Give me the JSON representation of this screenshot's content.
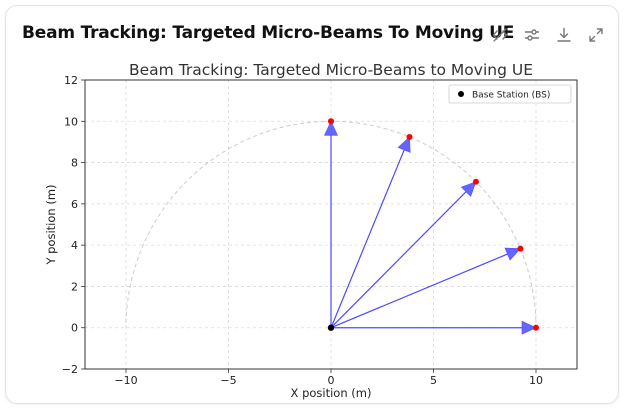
{
  "header": {
    "title": "Beam Tracking: Targeted Micro-Beams To Moving UE"
  },
  "toolbar": {
    "icons": [
      "hide-code-icon",
      "settings-sliders-icon",
      "download-icon",
      "expand-icon"
    ]
  },
  "chart_data": {
    "type": "scatter",
    "title": "Beam Tracking: Targeted Micro-Beams to Moving UE",
    "xlabel": "X position (m)",
    "ylabel": "Y position (m)",
    "xlim": [
      -12,
      12
    ],
    "ylim": [
      -2,
      12
    ],
    "xticks": [
      -10,
      -5,
      0,
      5,
      10
    ],
    "yticks": [
      -2,
      0,
      2,
      4,
      6,
      8,
      10,
      12
    ],
    "grid": true,
    "legend": {
      "placement": "top-right",
      "entries": [
        "Base Station (BS)"
      ]
    },
    "base_station": {
      "x": 0,
      "y": 0,
      "color": "#000000"
    },
    "coverage_arc": {
      "radius": 10,
      "color": "#cccccc"
    },
    "ue_positions": [
      {
        "x": 10,
        "y": 0
      },
      {
        "x": 9.24,
        "y": 3.83
      },
      {
        "x": 7.07,
        "y": 7.07
      },
      {
        "x": 3.83,
        "y": 9.24
      },
      {
        "x": 0,
        "y": 10
      }
    ],
    "ue_color": "#ff0000",
    "beam_color": "#4b4bff"
  }
}
